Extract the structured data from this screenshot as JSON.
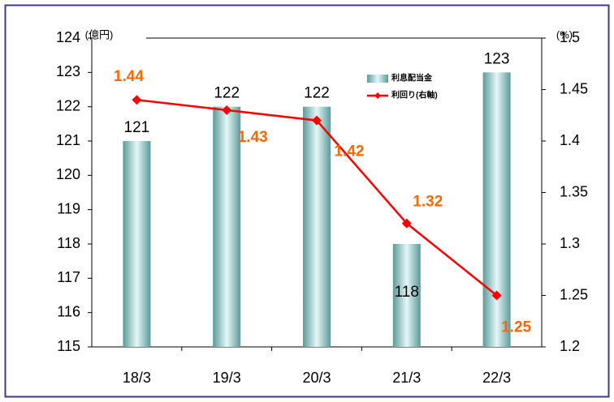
{
  "chart_data": {
    "type": "bar_line",
    "y_axis_label": "(億円)",
    "y2_axis_label": "(%)",
    "categories": [
      "18/3",
      "19/3",
      "20/3",
      "21/3",
      "22/3"
    ],
    "series": [
      {
        "name": "利息配当金",
        "color": "#8fc4c4",
        "type": "bar",
        "values": [
          121,
          122,
          122,
          118,
          123
        ]
      },
      {
        "name": "利回り(右軸)",
        "color": "#ff0000",
        "type": "line",
        "axis": "y2",
        "values": [
          1.44,
          1.43,
          1.42,
          1.32,
          1.25
        ]
      }
    ],
    "ylim": [
      115,
      124
    ],
    "yticks": [
      115,
      116,
      117,
      118,
      119,
      120,
      121,
      122,
      123,
      124
    ],
    "y2lim": [
      1.2,
      1.5
    ],
    "y2ticks": [
      1.2,
      1.25,
      1.3,
      1.35,
      1.4,
      1.45,
      1.5
    ],
    "legend": "upper right",
    "grid": false
  }
}
